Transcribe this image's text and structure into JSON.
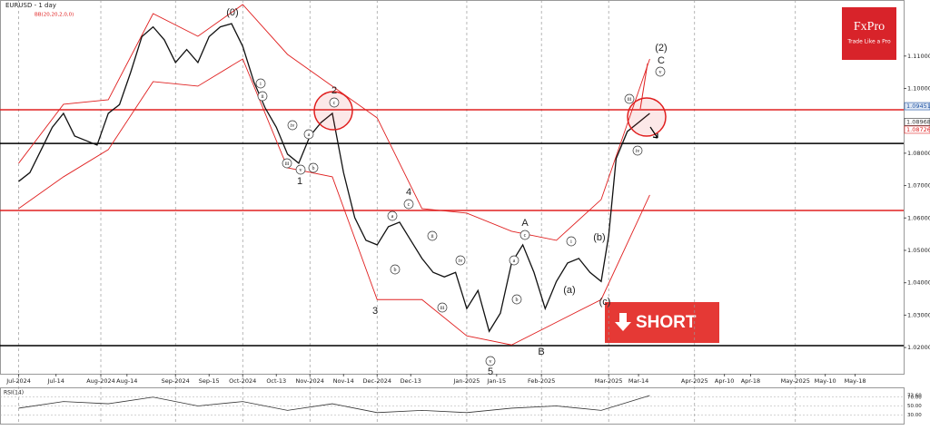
{
  "chart_data": {
    "type": "line",
    "title": "EURUSD - 1 day",
    "indicator": "BB(20,20,2,0,0)",
    "color": "#111111",
    "xlim": [
      -5,
      237
    ],
    "ylim": [
      1.0119,
      1.1273
    ],
    "x": [
      0,
      3,
      6,
      9,
      12,
      15,
      18,
      21,
      24,
      27,
      30,
      33,
      36,
      39,
      42,
      45,
      48,
      51,
      54,
      57,
      60,
      63,
      66,
      69,
      72,
      75,
      78,
      81,
      84,
      87,
      90,
      93,
      96,
      99,
      102,
      105,
      108,
      111,
      114,
      117,
      120,
      123,
      126,
      129,
      132,
      135,
      138,
      141,
      144,
      147,
      150,
      153,
      156,
      158,
      160,
      163,
      166,
      169
    ],
    "values": [
      1.0713,
      1.074,
      1.081,
      1.088,
      1.0923,
      1.0853,
      1.0839,
      1.0825,
      1.0923,
      1.095,
      1.105,
      1.116,
      1.119,
      1.115,
      1.108,
      1.112,
      1.108,
      1.116,
      1.119,
      1.12,
      1.113,
      1.102,
      1.094,
      1.088,
      1.0797,
      1.0769,
      1.0853,
      1.0895,
      1.0923,
      1.074,
      1.0601,
      1.0531,
      1.0517,
      1.0573,
      1.0587,
      1.0531,
      1.0475,
      1.0432,
      1.0418,
      1.0432,
      1.032,
      1.0376,
      1.025,
      1.0306,
      1.0461,
      1.0517,
      1.0432,
      1.032,
      1.0404,
      1.0461,
      1.0475,
      1.0432,
      1.0404,
      1.0545,
      1.0783,
      1.0867,
      1.0895,
      1.0923
    ],
    "bands": {
      "color": "#e02020",
      "x": [
        0,
        12,
        24,
        36,
        48,
        60,
        72,
        84,
        96,
        108,
        120,
        132,
        144,
        156,
        169
      ],
      "upper": [
        1.0769,
        1.0951,
        1.0965,
        1.1231,
        1.1161,
        1.1259,
        1.1105,
        1.1007,
        1.0909,
        1.0629,
        1.0615,
        1.0559,
        1.0531,
        1.0657,
        1.1091
      ],
      "lower": [
        1.0629,
        1.0727,
        1.0811,
        1.1021,
        1.1007,
        1.1091,
        1.0755,
        1.0727,
        1.0348,
        1.0348,
        1.0236,
        1.0208,
        1.0278,
        1.0348,
        1.0671
      ]
    },
    "yticks": [
      {
        "value": 1.11,
        "label": "1.11000"
      },
      {
        "value": 1.1,
        "label": "1.10000"
      },
      {
        "value": 1.08,
        "label": "1.08000"
      },
      {
        "value": 1.07,
        "label": "1.07000"
      },
      {
        "value": 1.06,
        "label": "1.06000"
      },
      {
        "value": 1.05,
        "label": "1.05000"
      },
      {
        "value": 1.04,
        "label": "1.04000"
      },
      {
        "value": 1.03,
        "label": "1.03000"
      },
      {
        "value": 1.02,
        "label": "1.02000"
      }
    ],
    "price_labels": [
      {
        "value": 1.09451,
        "color": "#1a4fa0"
      },
      {
        "value": 1.08968,
        "color": "#333333"
      },
      {
        "value": 1.08726,
        "color": "#e02020"
      }
    ],
    "levels": [
      {
        "value": 1.0934,
        "color": "#e02020"
      },
      {
        "value": 1.083,
        "color": "#000000"
      },
      {
        "value": 1.0623,
        "color": "#e02020"
      },
      {
        "value": 1.0206,
        "color": "#000000"
      }
    ],
    "xticks": [
      {
        "value": 0,
        "label": "Jul-2024"
      },
      {
        "value": 10,
        "label": "Jul-14"
      },
      {
        "value": 22,
        "label": "Aug-2024"
      },
      {
        "value": 29,
        "label": "Aug-14"
      },
      {
        "value": 42,
        "label": "Sep-2024"
      },
      {
        "value": 51,
        "label": "Sep-15"
      },
      {
        "value": 60,
        "label": "Oct-2024"
      },
      {
        "value": 69,
        "label": "Oct-13"
      },
      {
        "value": 78,
        "label": "Nov-2024"
      },
      {
        "value": 87,
        "label": "Nov-14"
      },
      {
        "value": 96,
        "label": "Dec-2024"
      },
      {
        "value": 105,
        "label": "Dec-13"
      },
      {
        "value": 120,
        "label": "Jan-2025"
      },
      {
        "value": 128,
        "label": "Jan-15"
      },
      {
        "value": 140,
        "label": "Feb-2025"
      },
      {
        "value": 158,
        "label": "Mar-2025"
      },
      {
        "value": 166,
        "label": "Mar-14"
      },
      {
        "value": 181,
        "label": "Apr-2025"
      },
      {
        "value": 189,
        "label": "Apr-10"
      },
      {
        "value": 196,
        "label": "Apr-18"
      },
      {
        "value": 208,
        "label": "May-2025"
      },
      {
        "value": 216,
        "label": "May-10"
      },
      {
        "value": 224,
        "label": "May-18"
      }
    ],
    "annotations": [
      {
        "text": "(0)",
        "circled": false
      },
      {
        "text": "2",
        "circled": false
      },
      {
        "text": "1",
        "circled": false
      },
      {
        "text": "3",
        "circled": false
      },
      {
        "text": "4",
        "circled": false
      },
      {
        "text": "5",
        "circled": false
      },
      {
        "text": "A",
        "circled": false
      },
      {
        "text": "B",
        "circled": false
      },
      {
        "text": "(2)",
        "circled": false
      },
      {
        "text": "C",
        "circled": false
      },
      {
        "text": "c",
        "circled": true
      },
      {
        "text": "iv",
        "circled": true
      },
      {
        "text": "a",
        "circled": true
      },
      {
        "text": "b",
        "circled": true
      },
      {
        "text": "v",
        "circled": true
      },
      {
        "text": "i",
        "circled": true
      },
      {
        "text": "ii",
        "circled": true
      },
      {
        "text": "iii",
        "circled": true
      },
      {
        "text": "c",
        "circled": true
      },
      {
        "text": "a",
        "circled": true
      },
      {
        "text": "b",
        "circled": true
      },
      {
        "text": "ii",
        "circled": true
      },
      {
        "text": "iv",
        "circled": true
      },
      {
        "text": "iii",
        "circled": true
      },
      {
        "text": "v",
        "circled": true
      },
      {
        "text": "a",
        "circled": true
      },
      {
        "text": "b",
        "circled": true
      },
      {
        "text": "c",
        "circled": true
      },
      {
        "text": "i",
        "circled": true
      },
      {
        "text": "(a)",
        "circled": false
      },
      {
        "text": "(b)",
        "circled": false
      },
      {
        "text": "(c)",
        "circled": false
      },
      {
        "text": "iii",
        "circled": true
      },
      {
        "text": "iv",
        "circled": true
      },
      {
        "text": "v",
        "circled": true
      }
    ],
    "logo": {
      "name": "FxPro",
      "tagline": "Trade Like a Pro"
    },
    "signal": "SHORT",
    "rsi": {
      "label": "RSI(14)",
      "color": "#333333",
      "ylim": [
        10,
        90
      ],
      "x": [
        0,
        12,
        24,
        36,
        48,
        60,
        72,
        84,
        96,
        108,
        120,
        132,
        144,
        156,
        169
      ],
      "values": [
        45,
        60,
        55,
        70,
        50,
        60,
        40,
        55,
        35,
        40,
        35,
        45,
        50,
        40,
        73.6
      ],
      "yticks": [
        {
          "value": 73.6,
          "label": "73.60"
        },
        {
          "value": 70,
          "label": "70.00"
        },
        {
          "value": 50,
          "label": "50.00"
        },
        {
          "value": 30,
          "label": "30.00"
        }
      ]
    }
  }
}
